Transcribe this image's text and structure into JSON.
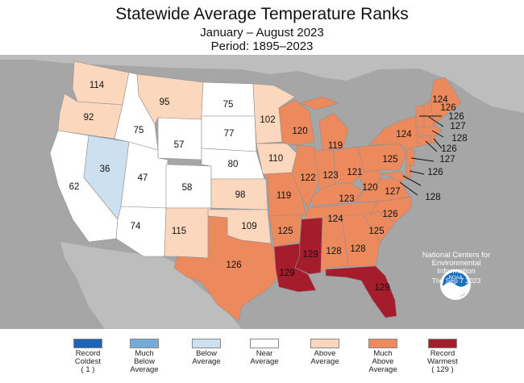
{
  "title": "Statewide Average Temperature Ranks",
  "subtitle_period": "January – August 2023",
  "subtitle_baseline": "Period: 1895–2023",
  "credit": {
    "line1": "National Centers for",
    "line2": "Environmental",
    "line3": "Information",
    "line4": "Thu Sep  7 2023",
    "logo_text": "NOAA"
  },
  "colors": {
    "background": "#a6a6a6",
    "record_coldest": "#1f63b4",
    "much_below": "#73aad6",
    "below": "#cde0ef",
    "near": "#ffffff",
    "above": "#fbd7bd",
    "much_above": "#ec8a5d",
    "record_warmest": "#a51c2d"
  },
  "legend": [
    {
      "key": "record_coldest",
      "label": "Record\nColdest\n( 1 )"
    },
    {
      "key": "much_below",
      "label": "Much\nBelow\nAverage"
    },
    {
      "key": "below",
      "label": "Below\nAverage"
    },
    {
      "key": "near",
      "label": "Near\nAverage"
    },
    {
      "key": "above",
      "label": "Above\nAverage"
    },
    {
      "key": "much_above",
      "label": "Much\nAbove\nAverage"
    },
    {
      "key": "record_warmest",
      "label": "Record\nWarmest\n( 129 )"
    }
  ],
  "states": [
    {
      "id": "WA",
      "rank": "114",
      "category": "above"
    },
    {
      "id": "OR",
      "rank": "92",
      "category": "above"
    },
    {
      "id": "CA",
      "rank": "62",
      "category": "near"
    },
    {
      "id": "NV",
      "rank": "36",
      "category": "below"
    },
    {
      "id": "ID",
      "rank": "75",
      "category": "near"
    },
    {
      "id": "MT",
      "rank": "95",
      "category": "above"
    },
    {
      "id": "WY",
      "rank": "57",
      "category": "near"
    },
    {
      "id": "UT",
      "rank": "47",
      "category": "near"
    },
    {
      "id": "AZ",
      "rank": "74",
      "category": "near"
    },
    {
      "id": "CO",
      "rank": "58",
      "category": "near"
    },
    {
      "id": "NM",
      "rank": "115",
      "category": "above"
    },
    {
      "id": "ND",
      "rank": "75",
      "category": "near"
    },
    {
      "id": "SD",
      "rank": "77",
      "category": "near"
    },
    {
      "id": "NE",
      "rank": "80",
      "category": "near"
    },
    {
      "id": "KS",
      "rank": "98",
      "category": "above"
    },
    {
      "id": "OK",
      "rank": "109",
      "category": "above"
    },
    {
      "id": "TX",
      "rank": "126",
      "category": "much_above"
    },
    {
      "id": "MN",
      "rank": "102",
      "category": "above"
    },
    {
      "id": "IA",
      "rank": "110",
      "category": "above"
    },
    {
      "id": "MO",
      "rank": "119",
      "category": "much_above"
    },
    {
      "id": "AR",
      "rank": "125",
      "category": "much_above"
    },
    {
      "id": "LA",
      "rank": "129",
      "category": "record_warmest"
    },
    {
      "id": "WI",
      "rank": "120",
      "category": "much_above"
    },
    {
      "id": "IL",
      "rank": "122",
      "category": "much_above"
    },
    {
      "id": "MI",
      "rank": "119",
      "category": "much_above"
    },
    {
      "id": "IN",
      "rank": "123",
      "category": "much_above"
    },
    {
      "id": "OH",
      "rank": "121",
      "category": "much_above"
    },
    {
      "id": "KY",
      "rank": "123",
      "category": "much_above"
    },
    {
      "id": "TN",
      "rank": "124",
      "category": "much_above"
    },
    {
      "id": "MS",
      "rank": "129",
      "category": "record_warmest"
    },
    {
      "id": "AL",
      "rank": "128",
      "category": "much_above"
    },
    {
      "id": "GA",
      "rank": "128",
      "category": "much_above"
    },
    {
      "id": "FL",
      "rank": "129",
      "category": "record_warmest"
    },
    {
      "id": "SC",
      "rank": "125",
      "category": "much_above"
    },
    {
      "id": "NC",
      "rank": "126",
      "category": "much_above"
    },
    {
      "id": "VA",
      "rank": "127",
      "category": "much_above"
    },
    {
      "id": "WV",
      "rank": "120",
      "category": "much_above"
    },
    {
      "id": "PA",
      "rank": "125",
      "category": "much_above"
    },
    {
      "id": "NY",
      "rank": "124",
      "category": "much_above"
    },
    {
      "id": "ME",
      "rank": "124",
      "category": "much_above"
    },
    {
      "id": "NH",
      "rank": "126",
      "category": "much_above"
    },
    {
      "id": "VT",
      "rank": "126",
      "category": "much_above"
    },
    {
      "id": "MA",
      "rank": "127",
      "category": "much_above"
    },
    {
      "id": "RI",
      "rank": "128",
      "category": "much_above"
    },
    {
      "id": "CT",
      "rank": "126",
      "category": "much_above"
    },
    {
      "id": "NJ",
      "rank": "127",
      "category": "much_above"
    },
    {
      "id": "DE",
      "rank": "126",
      "category": "much_above"
    },
    {
      "id": "MD",
      "rank": "128",
      "category": "much_above"
    }
  ]
}
